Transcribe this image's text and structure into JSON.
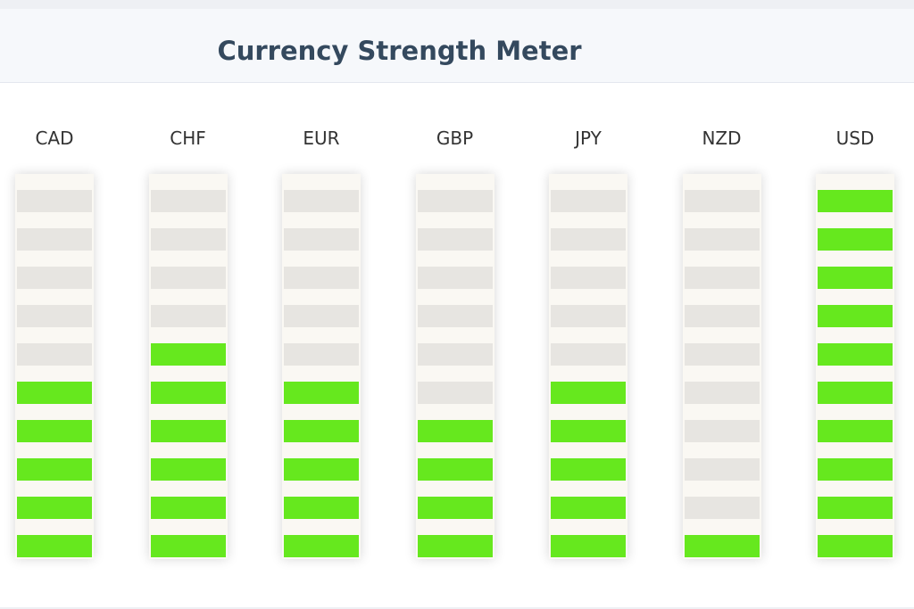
{
  "title": "Currency Strength Meter",
  "colors": {
    "active": "#66e81e",
    "inactive": "#e7e5e1",
    "track": "#faf8f3",
    "title": "#34495e"
  },
  "chart_data": {
    "type": "bar",
    "max_level": 10,
    "categories": [
      "CAD",
      "CHF",
      "EUR",
      "GBP",
      "JPY",
      "NZD",
      "USD"
    ],
    "values": [
      5,
      6,
      5,
      4,
      5,
      1,
      10
    ]
  }
}
